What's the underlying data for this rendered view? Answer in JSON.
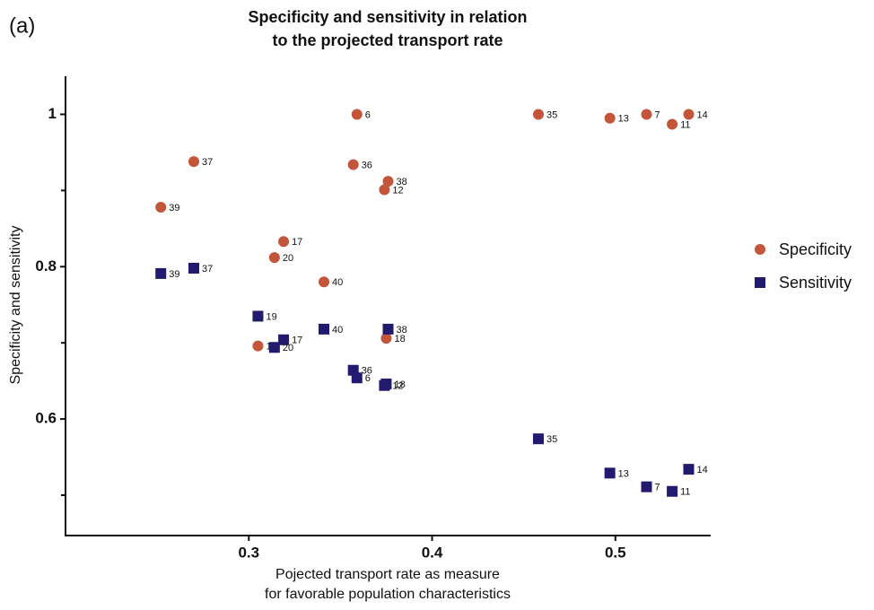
{
  "chart_data": {
    "type": "scatter",
    "panel_label": "(a)",
    "title": [
      "Specificity and sensitivity in relation",
      "to the projected transport rate"
    ],
    "x_label": [
      "Pojected transport rate as measure",
      "for favorable population characteristics"
    ],
    "y_label": "Specificity and sensitivity",
    "xlim": [
      0.2,
      0.552
    ],
    "ylim": [
      0.447,
      1.05
    ],
    "xticks": [
      0.3,
      0.4,
      0.5
    ],
    "yticks": [
      0.6,
      0.8,
      1.0
    ],
    "minor_yticks": [
      0.5,
      0.7,
      0.9
    ],
    "legend": "right",
    "series": [
      {
        "name": "Specificity",
        "color": "#c2553a",
        "marker": "circle",
        "x": [
          0.252,
          0.27,
          0.319,
          0.314,
          0.341,
          0.359,
          0.357,
          0.376,
          0.374,
          0.375,
          0.305,
          0.458,
          0.497,
          0.517,
          0.531,
          0.54
        ],
        "values": [
          0.878,
          0.938,
          0.833,
          0.812,
          0.78,
          1.0,
          0.934,
          0.912,
          0.901,
          0.706,
          0.696,
          1.0,
          0.995,
          1.0,
          0.987,
          1.0
        ],
        "labels": [
          "39",
          "37",
          "17",
          "20",
          "40",
          "6",
          "36",
          "38",
          "12",
          "18",
          "19",
          "35",
          "13",
          "7",
          "11",
          "14"
        ]
      },
      {
        "name": "Sensitivity",
        "color": "#221a6e",
        "marker": "square",
        "x": [
          0.252,
          0.27,
          0.305,
          0.319,
          0.314,
          0.341,
          0.376,
          0.357,
          0.359,
          0.375,
          0.374,
          0.458,
          0.497,
          0.517,
          0.531,
          0.54
        ],
        "values": [
          0.791,
          0.798,
          0.735,
          0.704,
          0.694,
          0.718,
          0.718,
          0.664,
          0.654,
          0.646,
          0.644,
          0.574,
          0.529,
          0.511,
          0.505,
          0.534
        ],
        "labels": [
          "39",
          "37",
          "19",
          "17",
          "20",
          "40",
          "38",
          "36",
          "6",
          "18",
          "12",
          "35",
          "13",
          "7",
          "11",
          "14"
        ]
      }
    ]
  }
}
